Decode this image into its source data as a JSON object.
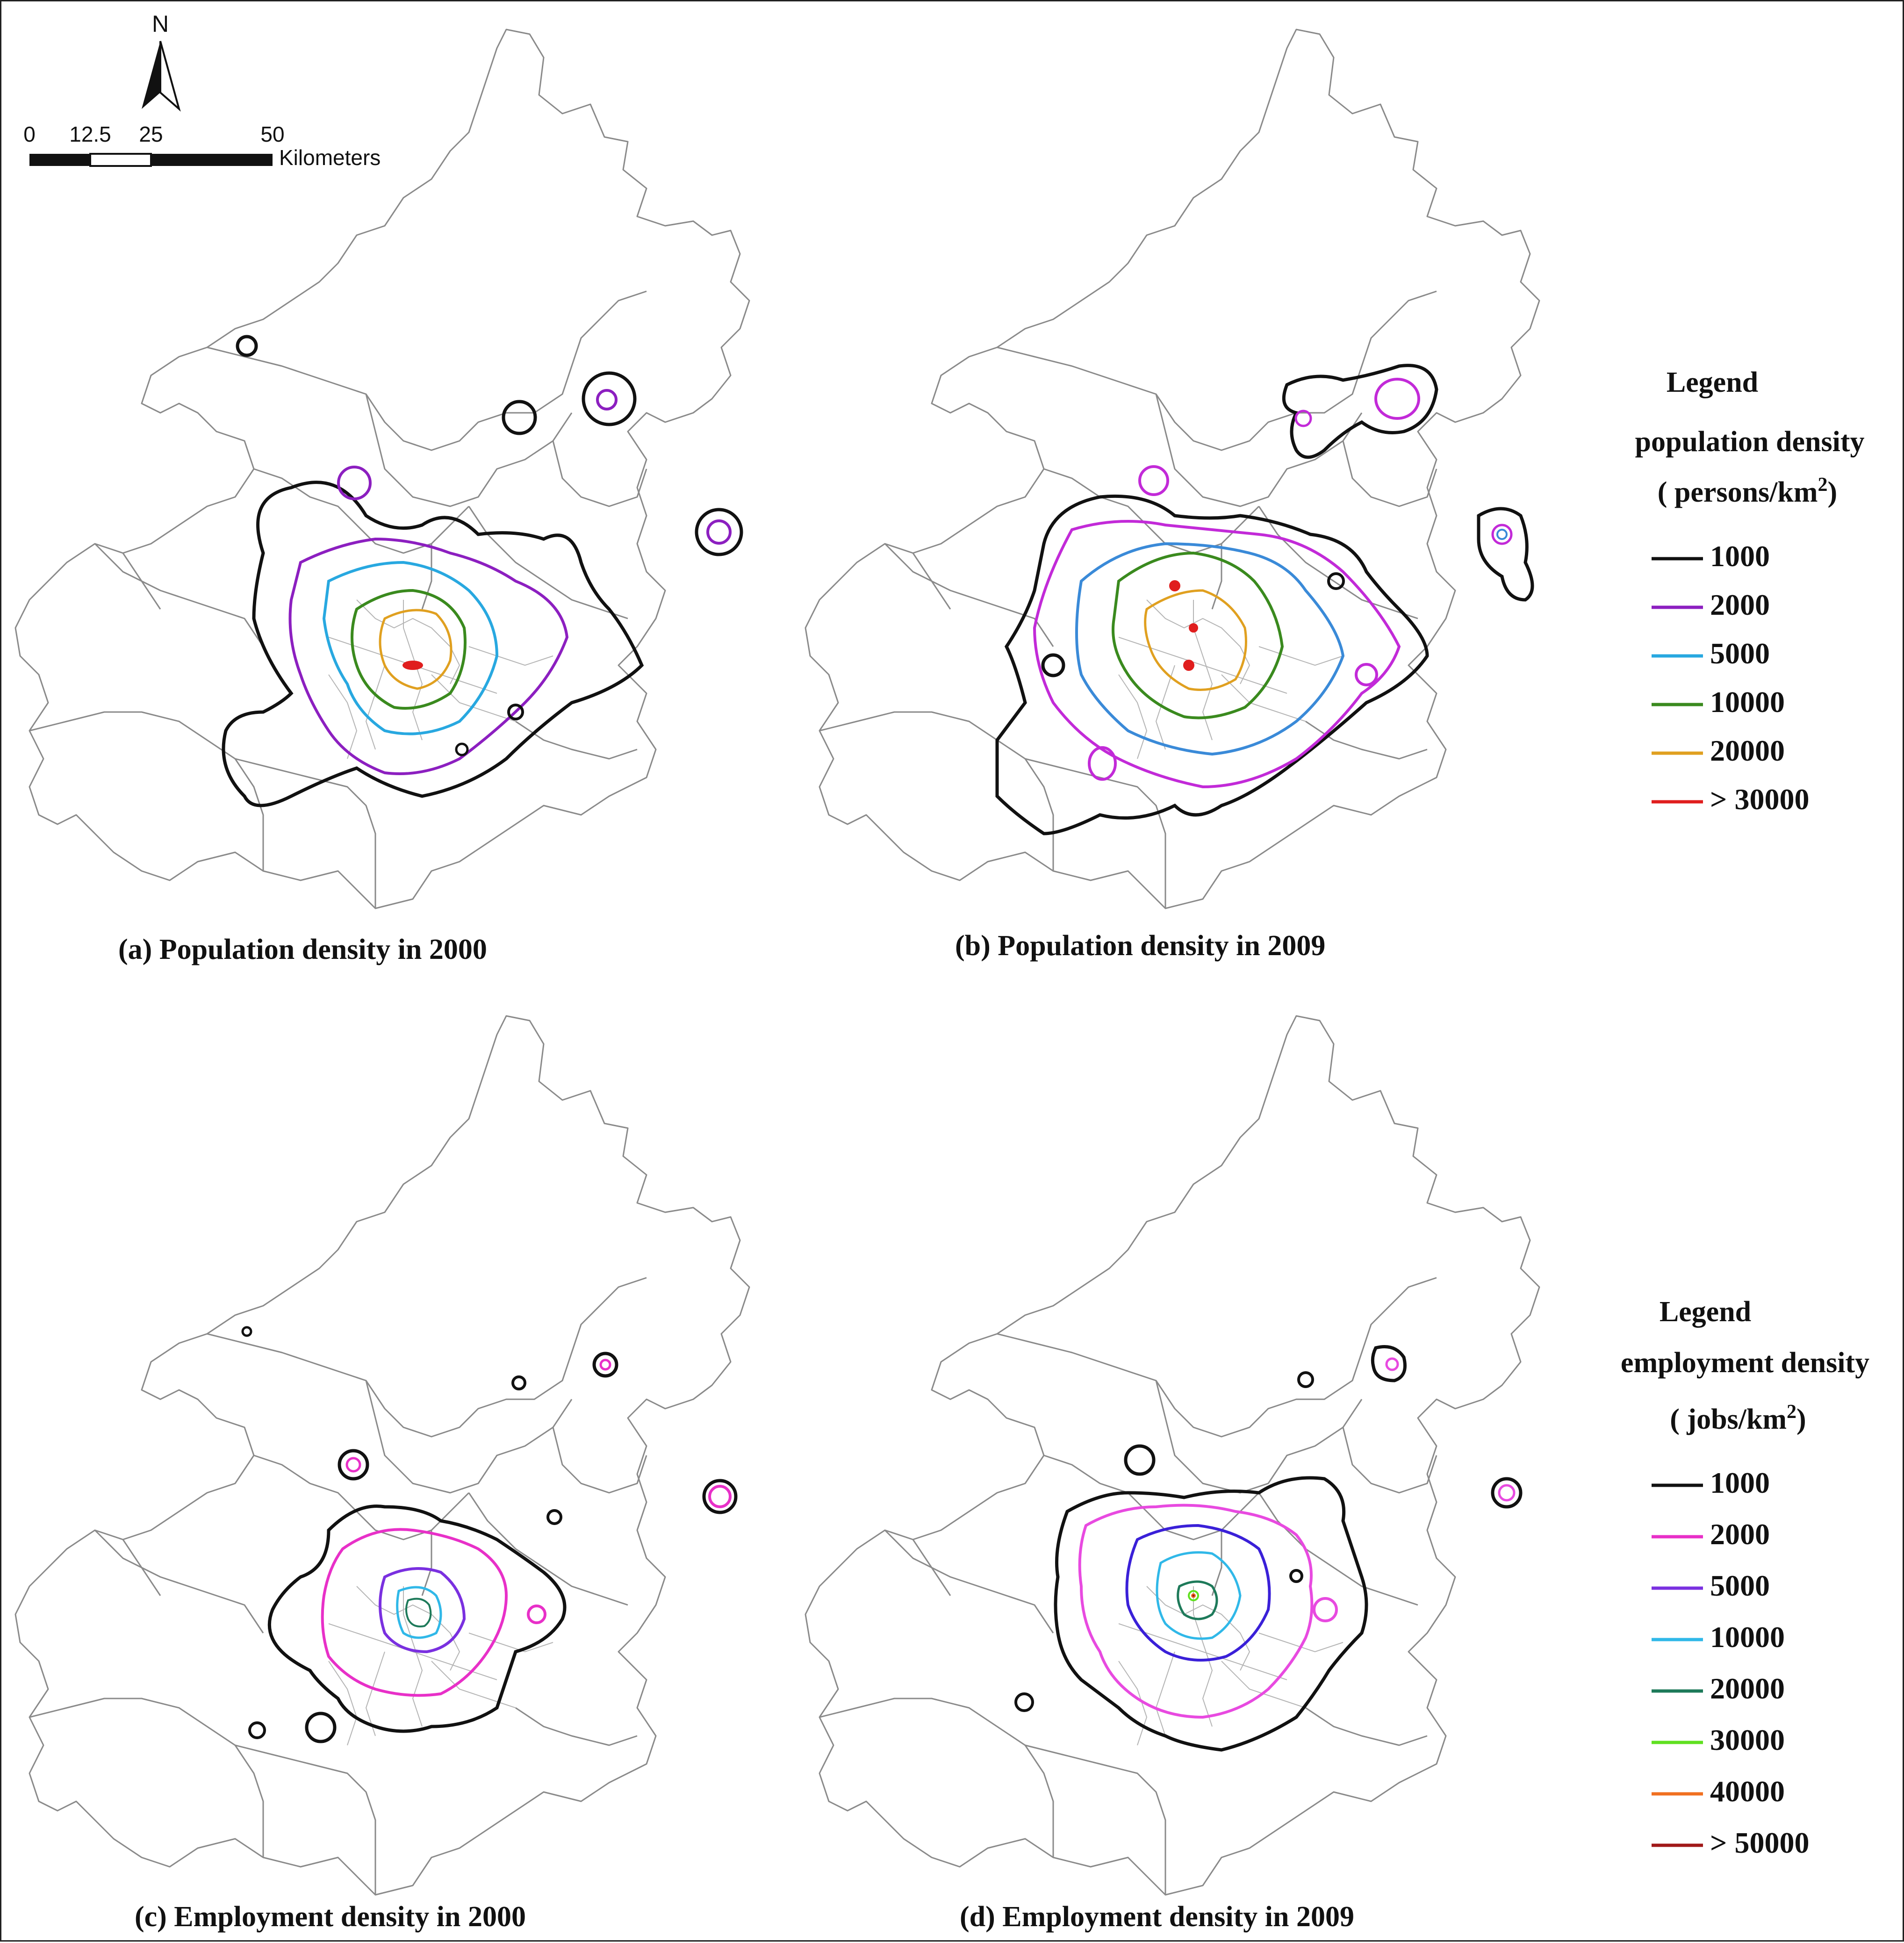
{
  "scale_bar": {
    "tick_labels": [
      "0",
      "12.5",
      "25",
      "50"
    ],
    "unit": "Kilometers",
    "north_label": "N"
  },
  "panels": [
    {
      "id": "a",
      "caption": "(a) Population density in 2000"
    },
    {
      "id": "b",
      "caption": "(b)  Population density in 2009"
    },
    {
      "id": "c",
      "caption": "(c) Employment density in 2000"
    },
    {
      "id": "d",
      "caption": "(d) Employment density in 2009"
    }
  ],
  "legend_population": {
    "title": "Legend",
    "subtitle": "population density",
    "unit_prefix": "( persons/km",
    "unit_sup": "2",
    "unit_suffix": ")",
    "items": [
      {
        "label": "1000",
        "color": "#111111"
      },
      {
        "label": "2000",
        "color": "#8c1fc0"
      },
      {
        "label": "5000",
        "color": "#28a8e0"
      },
      {
        "label": "10000",
        "color": "#3a8a1e"
      },
      {
        "label": "20000",
        "color": "#e0a020"
      },
      {
        "label": "> 30000",
        "color": "#e01e1e"
      }
    ]
  },
  "legend_employment": {
    "title": "Legend",
    "subtitle": "employment density",
    "unit_prefix": "( jobs/km",
    "unit_sup": "2",
    "unit_suffix": ")",
    "items": [
      {
        "label": "1000",
        "color": "#111111"
      },
      {
        "label": "2000",
        "color": "#e830c8"
      },
      {
        "label": "5000",
        "color": "#7a30e0"
      },
      {
        "label": "10000",
        "color": "#30b8e8"
      },
      {
        "label": "20000",
        "color": "#1e7a5a"
      },
      {
        "label": "30000",
        "color": "#60e020"
      },
      {
        "label": "40000",
        "color": "#f07020"
      },
      {
        "label": "> 50000",
        "color": "#a01818"
      }
    ]
  }
}
